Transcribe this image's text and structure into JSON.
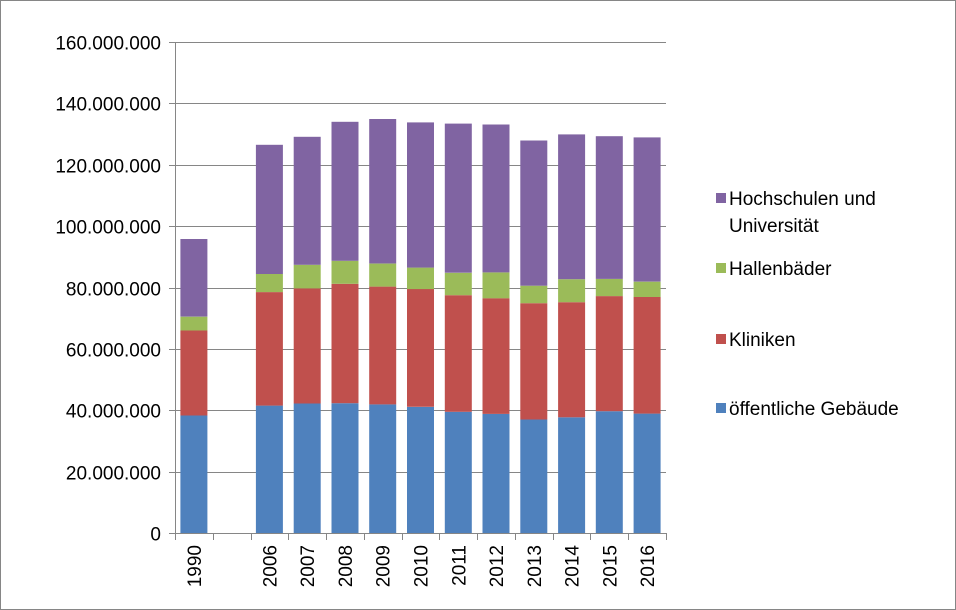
{
  "chart_data": {
    "type": "bar",
    "stacked": true,
    "title": "",
    "xlabel": "",
    "ylabel": "",
    "categories": [
      "1990",
      "",
      "2006",
      "2007",
      "2008",
      "2009",
      "2010",
      "2011",
      "2012",
      "2013",
      "2014",
      "2015",
      "2016"
    ],
    "ylim": [
      0,
      160000000
    ],
    "yticks": [
      0,
      20000000,
      40000000,
      60000000,
      80000000,
      100000000,
      120000000,
      140000000,
      160000000
    ],
    "ytick_labels": [
      "0",
      "20.000.000",
      "40.000.000",
      "60.000.000",
      "80.000.000",
      "100.000.000",
      "120.000.000",
      "140.000.000",
      "160.000.000"
    ],
    "grid": true,
    "legend_position": "right",
    "series": [
      {
        "name": "öffentliche Gebäude",
        "color": "#4f81bd",
        "values": [
          38300000,
          null,
          41500000,
          42200000,
          42300000,
          41900000,
          41100000,
          39500000,
          38800000,
          37000000,
          37700000,
          39700000,
          38900000
        ]
      },
      {
        "name": "Kliniken",
        "color": "#c0504d",
        "values": [
          27700000,
          null,
          37000000,
          37500000,
          38900000,
          38400000,
          38400000,
          38000000,
          37700000,
          37900000,
          37500000,
          37500000,
          38000000
        ]
      },
      {
        "name": "Hallenbäder",
        "color": "#9bbb59",
        "values": [
          4500000,
          null,
          5900000,
          7700000,
          7500000,
          7500000,
          7000000,
          7300000,
          8400000,
          5700000,
          7500000,
          5600000,
          5000000
        ]
      },
      {
        "name": "Hochschulen und Universität",
        "color": "#8064a2",
        "values": [
          25300000,
          null,
          42100000,
          41700000,
          45300000,
          47100000,
          47300000,
          48600000,
          48200000,
          47300000,
          47200000,
          46500000,
          47000000
        ]
      }
    ],
    "legend_order": [
      "Hochschulen und Universität",
      "Hallenbäder",
      "Kliniken",
      "öffentliche Gebäude"
    ],
    "legend_label_lines": {
      "Hochschulen und Universität": [
        "Hochschulen und",
        "Universität"
      ]
    }
  }
}
